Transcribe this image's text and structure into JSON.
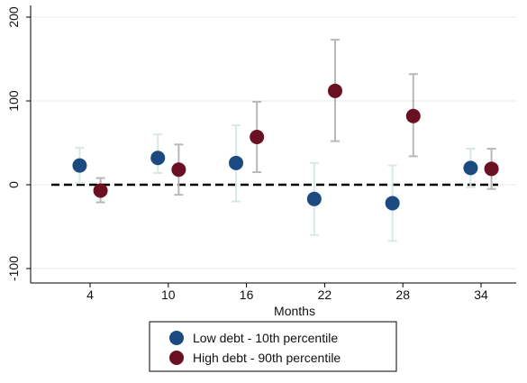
{
  "chart_data": {
    "type": "scatter",
    "title": "",
    "xlabel": "Months",
    "ylabel": "",
    "x": [
      4,
      10,
      16,
      22,
      28,
      34
    ],
    "x_tick_labels": [
      "4",
      "10",
      "16",
      "22",
      "28",
      "34"
    ],
    "xlim": [
      0,
      37
    ],
    "ylim": [
      -110,
      200
    ],
    "y_ticks": [
      -100,
      0,
      100,
      200
    ],
    "y_tick_labels": [
      "-100",
      "0",
      "100",
      "200"
    ],
    "grid": true,
    "reference_line": {
      "y": 0,
      "style": "dashed",
      "color": "#000000"
    },
    "legend": {
      "placement": "bottom",
      "columns": 1
    },
    "series": [
      {
        "name": "Low debt - 10th percentile",
        "color": "#1a4a80",
        "ci_color": "#d8e8e6",
        "offset": -0.8,
        "values": [
          23,
          32,
          26,
          -17,
          -22,
          20
        ],
        "ci_low": [
          2,
          14,
          -20,
          -60,
          -67,
          -3
        ],
        "ci_high": [
          44,
          60,
          71,
          26,
          23,
          43
        ]
      },
      {
        "name": "High debt - 90th percentile",
        "color": "#6b0f22",
        "ci_color": "#b8b8b8",
        "offset": 0.8,
        "values": [
          -7,
          18,
          57,
          112,
          82,
          19
        ],
        "ci_low": [
          -21,
          -12,
          15,
          52,
          34,
          -5
        ],
        "ci_high": [
          8,
          48,
          99,
          173,
          132,
          43
        ]
      }
    ]
  }
}
